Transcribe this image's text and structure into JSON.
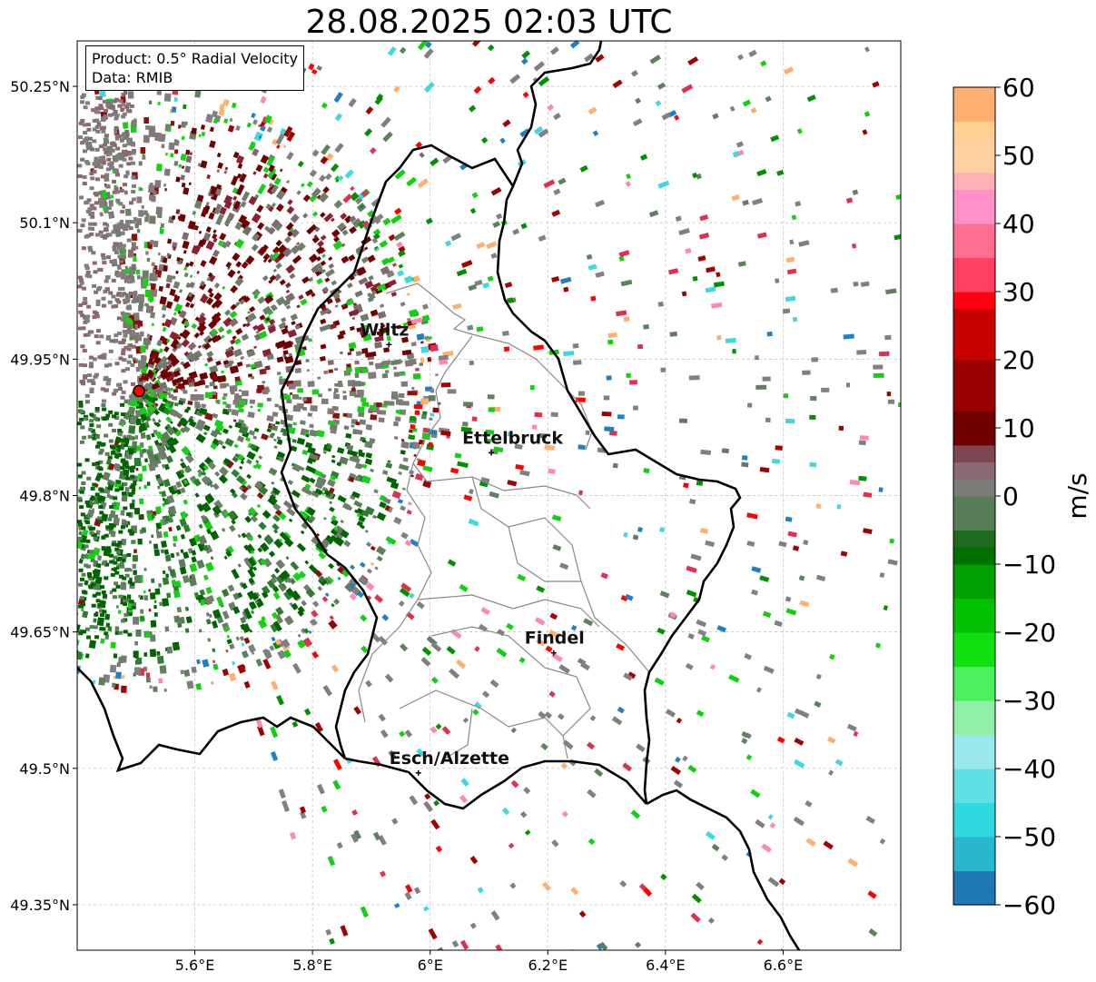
{
  "title": "28.08.2025 02:03 UTC",
  "info": {
    "product": "Product: 0.5° Radial Velocity",
    "data": "Data: RMIB"
  },
  "map": {
    "lon_range": [
      5.4,
      6.8
    ],
    "lat_range": [
      49.3,
      50.3
    ],
    "lat_ticks": [
      {
        "value": 50.25,
        "label": "50.25°N"
      },
      {
        "value": 50.1,
        "label": "50.1°N"
      },
      {
        "value": 49.95,
        "label": "49.95°N"
      },
      {
        "value": 49.8,
        "label": "49.8°N"
      },
      {
        "value": 49.65,
        "label": "49.65°N"
      },
      {
        "value": 49.5,
        "label": "49.5°N"
      },
      {
        "value": 49.35,
        "label": "49.35°N"
      }
    ],
    "lon_ticks": [
      {
        "value": 5.6,
        "label": "5.6°E"
      },
      {
        "value": 5.8,
        "label": "5.8°E"
      },
      {
        "value": 6.0,
        "label": "6°E"
      },
      {
        "value": 6.2,
        "label": "6.2°E"
      },
      {
        "value": 6.4,
        "label": "6.4°E"
      },
      {
        "value": 6.6,
        "label": "6.6°E"
      }
    ],
    "grid": true,
    "radar_site": {
      "lon": 5.505,
      "lat": 49.915,
      "color": "#ff0000"
    },
    "cities": [
      {
        "name": "Wiltz",
        "lon": 5.93,
        "lat": 49.966
      },
      {
        "name": "Ettelbruck",
        "lon": 6.104,
        "lat": 49.847
      },
      {
        "name": "Findel",
        "lon": 6.21,
        "lat": 49.627
      },
      {
        "name": "Esch/Alzette",
        "lon": 5.98,
        "lat": 49.495
      }
    ]
  },
  "colorbar": {
    "label": "m/s",
    "min": -60,
    "max": 60,
    "ticks": [
      60,
      50,
      40,
      30,
      20,
      10,
      0,
      -10,
      -20,
      -30,
      -40,
      -50,
      -60
    ],
    "tick_labels": [
      "60",
      "50",
      "40",
      "30",
      "20",
      "10",
      "0",
      "−10",
      "−20",
      "−30",
      "−40",
      "−50",
      "−60"
    ]
  }
}
